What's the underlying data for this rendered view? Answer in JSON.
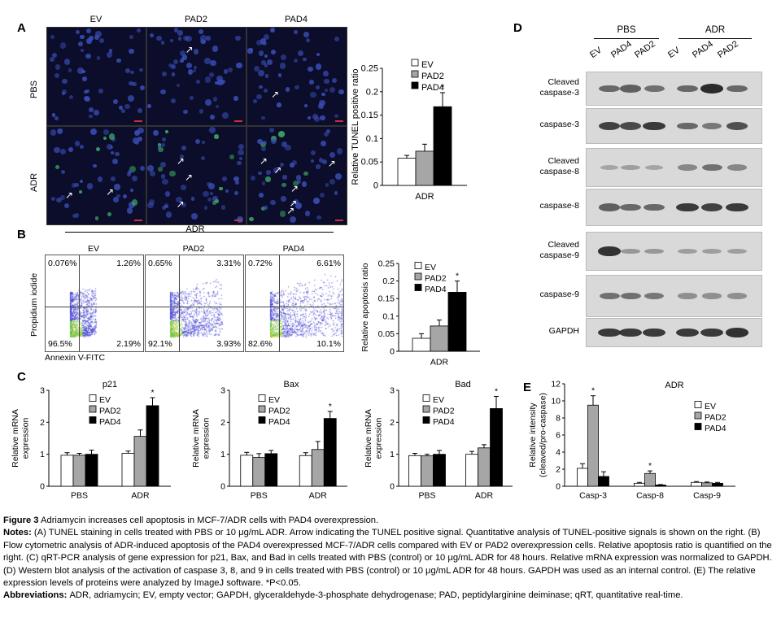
{
  "panel_labels": {
    "A": "A",
    "B": "B",
    "C": "C",
    "D": "D",
    "E": "E"
  },
  "panelA": {
    "columns": [
      "EV",
      "PAD2",
      "PAD4"
    ],
    "rows": [
      "PBS",
      "ADR"
    ]
  },
  "panelB": {
    "top_label": "ADR",
    "columns": [
      "EV",
      "PAD2",
      "PAD4"
    ],
    "yaxis": "Propidium iodide",
    "xaxis": "Annexin V-FITC",
    "quadrants": [
      {
        "ul": "0.076%",
        "ur": "1.26%",
        "ll": "96.5%",
        "lr": "2.19%"
      },
      {
        "ul": "0.65%",
        "ur": "3.31%",
        "ll": "92.1%",
        "lr": "3.93%"
      },
      {
        "ul": "0.72%",
        "ur": "6.61%",
        "ll": "82.6%",
        "lr": "10.1%"
      }
    ]
  },
  "panelD": {
    "groups": [
      "PBS",
      "ADR"
    ],
    "lanes": [
      "EV",
      "PAD4",
      "PAD2",
      "EV",
      "PAD4",
      "PAD2"
    ],
    "rows": [
      {
        "label": "Cleaved\ncaspase-3",
        "intensity": [
          0.55,
          0.6,
          0.5,
          0.55,
          0.95,
          0.55
        ]
      },
      {
        "label": "caspase-3",
        "intensity": [
          0.8,
          0.75,
          0.85,
          0.55,
          0.45,
          0.7
        ]
      },
      {
        "label": "Cleaved\ncaspase-8",
        "intensity": [
          0.15,
          0.2,
          0.15,
          0.35,
          0.5,
          0.35
        ]
      },
      {
        "label": "caspase-8",
        "intensity": [
          0.6,
          0.55,
          0.55,
          0.85,
          0.8,
          0.85
        ]
      },
      {
        "label": "Cleaved\ncaspase-9",
        "intensity": [
          0.9,
          0.25,
          0.25,
          0.2,
          0.2,
          0.2
        ]
      },
      {
        "label": "caspase-9",
        "intensity": [
          0.5,
          0.5,
          0.45,
          0.3,
          0.3,
          0.3
        ]
      },
      {
        "label": "GAPDH",
        "intensity": [
          0.85,
          0.85,
          0.85,
          0.85,
          0.85,
          0.9
        ]
      }
    ]
  },
  "chart_data": [
    {
      "id": "A",
      "type": "bar",
      "ylabel": "Relative TUNEL positive ratio",
      "xlabel": "ADR",
      "ylim": [
        0,
        0.25
      ],
      "yticks": [
        "0",
        "0.05",
        "0.1",
        "0.15",
        "0.2",
        "0.25"
      ],
      "series": [
        {
          "name": "EV",
          "values": [
            0.058
          ],
          "err": [
            0.006
          ]
        },
        {
          "name": "PAD2",
          "values": [
            0.073
          ],
          "err": [
            0.015
          ]
        },
        {
          "name": "PAD4",
          "values": [
            0.168
          ],
          "err": [
            0.03
          ]
        }
      ],
      "annotations": [
        "*"
      ]
    },
    {
      "id": "B",
      "type": "bar",
      "ylabel": "Relative apoptosis ratio",
      "xlabel": "ADR",
      "ylim": [
        0,
        0.25
      ],
      "yticks": [
        "0",
        "0.05",
        "0.1",
        "0.15",
        "0.2",
        "0.25"
      ],
      "series": [
        {
          "name": "EV",
          "values": [
            0.037
          ],
          "err": [
            0.013
          ]
        },
        {
          "name": "PAD2",
          "values": [
            0.072
          ],
          "err": [
            0.017
          ]
        },
        {
          "name": "PAD4",
          "values": [
            0.168
          ],
          "err": [
            0.032
          ]
        }
      ],
      "annotations": [
        "*"
      ]
    },
    {
      "id": "C1",
      "type": "bar",
      "title": "p21",
      "ylabel": "Relative mRNA\nexpression",
      "categories": [
        "PBS",
        "ADR"
      ],
      "ylim": [
        0,
        3
      ],
      "yticks": [
        "0",
        "1",
        "2",
        "3"
      ],
      "series": [
        {
          "name": "EV",
          "values": [
            0.97,
            1.03
          ],
          "err": [
            0.08,
            0.07
          ]
        },
        {
          "name": "PAD2",
          "values": [
            0.97,
            1.56
          ],
          "err": [
            0.06,
            0.2
          ]
        },
        {
          "name": "PAD4",
          "values": [
            1.0,
            2.52
          ],
          "err": [
            0.13,
            0.25
          ]
        }
      ],
      "annotations": [
        "*"
      ]
    },
    {
      "id": "C2",
      "type": "bar",
      "title": "Bax",
      "ylabel": "Relative mRNA\nexpression",
      "categories": [
        "PBS",
        "ADR"
      ],
      "ylim": [
        0,
        3
      ],
      "yticks": [
        "0",
        "1",
        "2",
        "3"
      ],
      "series": [
        {
          "name": "EV",
          "values": [
            0.97,
            0.96
          ],
          "err": [
            0.09,
            0.09
          ]
        },
        {
          "name": "PAD2",
          "values": [
            0.9,
            1.15
          ],
          "err": [
            0.12,
            0.25
          ]
        },
        {
          "name": "PAD4",
          "values": [
            1.02,
            2.12
          ],
          "err": [
            0.1,
            0.22
          ]
        }
      ],
      "annotations": [
        "*"
      ]
    },
    {
      "id": "C3",
      "type": "bar",
      "title": "Bad",
      "ylabel": "Relative mRNA\nexpression",
      "categories": [
        "PBS",
        "ADR"
      ],
      "ylim": [
        0,
        3
      ],
      "yticks": [
        "0",
        "1",
        "2",
        "3"
      ],
      "series": [
        {
          "name": "EV",
          "values": [
            0.96,
            1.0
          ],
          "err": [
            0.07,
            0.09
          ]
        },
        {
          "name": "PAD2",
          "values": [
            0.95,
            1.2
          ],
          "err": [
            0.05,
            0.1
          ]
        },
        {
          "name": "PAD4",
          "values": [
            1.0,
            2.43
          ],
          "err": [
            0.12,
            0.38
          ]
        }
      ],
      "annotations": [
        "*"
      ]
    },
    {
      "id": "E",
      "type": "bar",
      "title": "ADR",
      "ylabel": "Relative intensity\n(cleaved/pro-caspase)",
      "categories": [
        "Casp-3",
        "Casp-8",
        "Casp-9"
      ],
      "ylim": [
        0,
        12
      ],
      "yticks": [
        "0",
        "2",
        "4",
        "6",
        "8",
        "10",
        "12"
      ],
      "series": [
        {
          "name": "EV",
          "values": [
            2.1,
            0.35,
            0.45
          ],
          "err": [
            0.55,
            0.1,
            0.1
          ]
        },
        {
          "name": "PAD2",
          "values": [
            9.5,
            1.5,
            0.4
          ],
          "err": [
            1.1,
            0.3,
            0.1
          ]
        },
        {
          "name": "PAD4",
          "values": [
            1.15,
            0.15,
            0.35
          ],
          "err": [
            0.55,
            0.05,
            0.1
          ]
        }
      ],
      "annotations": [
        "*",
        "*"
      ]
    }
  ],
  "caption": {
    "title_bold": "Figure 3",
    "title_rest": " Adriamycin increases cell apoptosis in MCF-7/ADR cells with PAD4 overexpression.",
    "notes_bold": "Notes: ",
    "notes_text": "(A) TUNEL staining in cells treated with PBS or 10 μg/mL ADR. Arrow indicating the TUNEL positive signal. Quantitative analysis of TUNEL-positive signals is shown on the right. (B) Flow cytometric analysis of ADR-induced apoptosis of the PAD4 overexpressed MCF-7/ADR cells compared with EV or PAD2 overexpression cells. Relative apoptosis ratio is quantified on the right. (C) qRT-PCR analysis of gene expression for p21, Bax, and Bad in cells treated with PBS (control) or 10 μg/mL ADR for 48 hours. Relative mRNA expression was normalized to GAPDH. (D) Western blot analysis of the activation of caspase 3, 8, and 9 in cells treated with PBS (control) or 10 μg/mL ADR for 48 hours. GAPDH was used as an internal control. (E) The relative expression levels of proteins were analyzed by ImageJ software. *P<0.05.",
    "abbr_bold": "Abbreviations: ",
    "abbr_text": "ADR, adriamycin; EV, empty vector; GAPDH, glyceraldehyde-3-phosphate dehydrogenase; PAD, peptidylarginine deiminase; qRT, quantitative real-time."
  }
}
